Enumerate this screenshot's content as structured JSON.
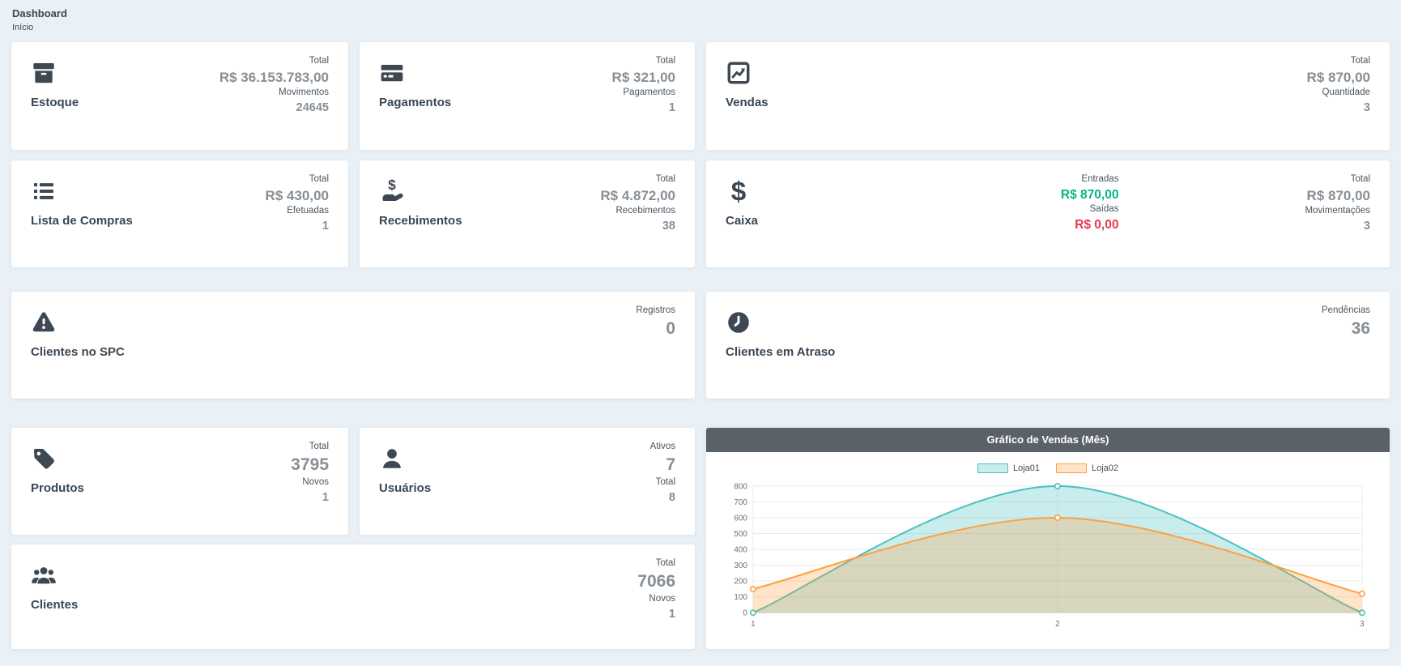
{
  "breadcrumb": {
    "title": "Dashboard",
    "subtitle": "Início"
  },
  "cards": {
    "estoque": {
      "title": "Estoque",
      "icon": "box-icon",
      "stats": [
        {
          "label": "Total",
          "value": "R$ 36.153.783,00"
        },
        {
          "label": "Movimentos",
          "value": "24645"
        }
      ]
    },
    "pagamentos": {
      "title": "Pagamentos",
      "icon": "credit-card-icon",
      "stats": [
        {
          "label": "Total",
          "value": "R$ 321,00"
        },
        {
          "label": "Pagamentos",
          "value": "1"
        }
      ]
    },
    "vendas": {
      "title": "Vendas",
      "icon": "chart-line-icon",
      "stats": [
        {
          "label": "Total",
          "value": "R$ 870,00"
        },
        {
          "label": "Quantidade",
          "value": "3"
        }
      ]
    },
    "lista_de_compras": {
      "title": "Lista de Compras",
      "icon": "list-icon",
      "stats": [
        {
          "label": "Total",
          "value": "R$ 430,00"
        },
        {
          "label": "Efetuadas",
          "value": "1"
        }
      ]
    },
    "recebimentos": {
      "title": "Recebimentos",
      "icon": "hand-holding-dollar-icon",
      "stats": [
        {
          "label": "Total",
          "value": "R$ 4.872,00"
        },
        {
          "label": "Recebimentos",
          "value": "38"
        }
      ]
    },
    "caixa": {
      "title": "Caixa",
      "icon": "dollar-sign-icon",
      "flow_stats": [
        {
          "label": "Entradas",
          "value": "R$ 870,00",
          "color": "#00b884"
        },
        {
          "label": "Saídas",
          "value": "R$ 0,00",
          "color": "#e63950"
        }
      ],
      "stats": [
        {
          "label": "Total",
          "value": "R$ 870,00"
        },
        {
          "label": "Movimentações",
          "value": "3"
        }
      ]
    },
    "clientes_no_spc": {
      "title": "Clientes no SPC",
      "icon": "warning-triangle-icon",
      "stats": [
        {
          "label": "Registros",
          "value": "0"
        }
      ]
    },
    "clientes_em_atraso": {
      "title": "Clientes em Atraso",
      "icon": "clock-icon",
      "stats": [
        {
          "label": "Pendências",
          "value": "36"
        }
      ]
    },
    "produtos": {
      "title": "Produtos",
      "icon": "tag-icon",
      "stats": [
        {
          "label": "Total",
          "value": "3795"
        },
        {
          "label": "Novos",
          "value": "1"
        }
      ]
    },
    "usuarios": {
      "title": "Usuários",
      "icon": "user-icon",
      "stats": [
        {
          "label": "Ativos",
          "value": "7"
        },
        {
          "label": "Total",
          "value": "8"
        }
      ]
    },
    "clientes": {
      "title": "Clientes",
      "icon": "users-icon",
      "stats": [
        {
          "label": "Total",
          "value": "7066"
        },
        {
          "label": "Novos",
          "value": "1"
        }
      ]
    }
  },
  "chart_card": {
    "title": "Gráfico de Vendas (Mês)",
    "header_color": "#5b6168"
  },
  "chart_data": {
    "type": "area",
    "title": "Gráfico de Vendas (Mês)",
    "x": [
      1,
      2,
      3
    ],
    "series": [
      {
        "name": "Loja01",
        "values": [
          0,
          800,
          0
        ],
        "color": "#4bc0c0",
        "fill": "rgba(75,192,192,0.30)"
      },
      {
        "name": "Loja02",
        "values": [
          150,
          600,
          120
        ],
        "color": "#ff9f40",
        "fill": "rgba(255,159,64,0.28)"
      }
    ],
    "ylim": [
      0,
      800
    ],
    "ytick_step": 100,
    "grid": true,
    "legend_position": "top",
    "smooth": true
  },
  "colors": {
    "positive": "#00b884",
    "negative": "#e63950",
    "icon": "#3e4852",
    "background": "#e9f0f6"
  }
}
